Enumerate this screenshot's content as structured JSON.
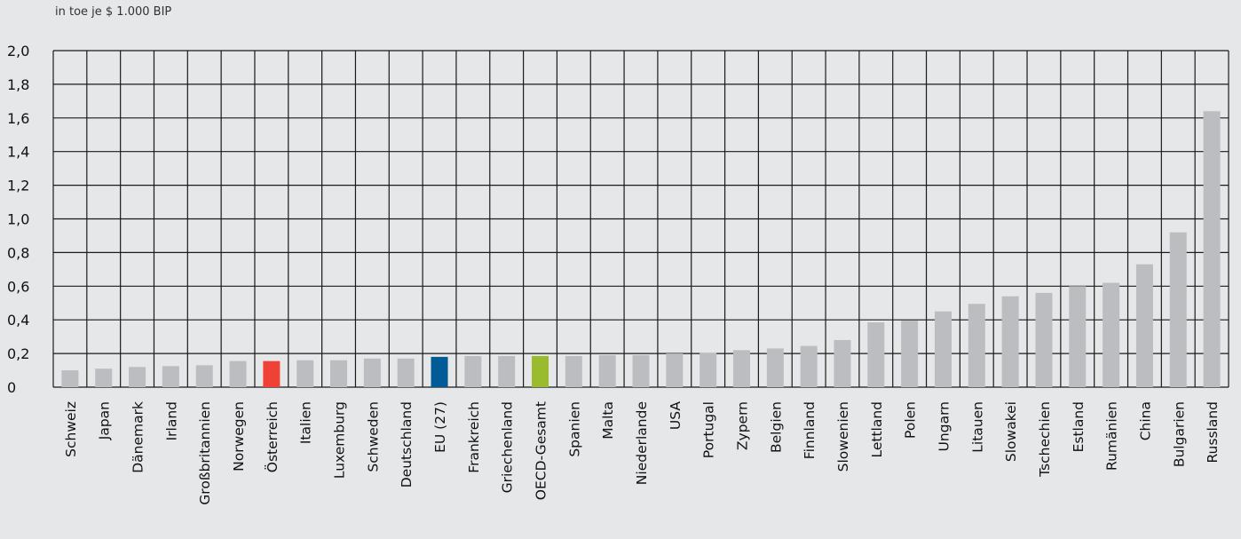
{
  "chart_data": {
    "type": "bar",
    "unit_label": "in toe je $ 1.000 BIP",
    "ylim": [
      0,
      2.0
    ],
    "y_ticks": [
      "0",
      "0,2",
      "0,4",
      "0,6",
      "0,8",
      "1,0",
      "1,2",
      "1,4",
      "1,6",
      "1,8",
      "2,0"
    ],
    "grid": true,
    "categories": [
      "Schweiz",
      "Japan",
      "Dänemark",
      "Irland",
      "Großbritannien",
      "Norwegen",
      "Österreich",
      "Italien",
      "Luxemburg",
      "Schweden",
      "Deutschland",
      "EU (27)",
      "Frankreich",
      "Griechenland",
      "OECD-Gesamt",
      "Spanien",
      "Malta",
      "Niederlande",
      "USA",
      "Portugal",
      "Zypern",
      "Belgien",
      "Finnland",
      "Slowenien",
      "Lettland",
      "Polen",
      "Ungarn",
      "Litauen",
      "Slowakei",
      "Tschechien",
      "Estland",
      "Rumänien",
      "China",
      "Bulgarien",
      "Russland"
    ],
    "values": [
      0.1,
      0.11,
      0.12,
      0.125,
      0.13,
      0.155,
      0.155,
      0.16,
      0.16,
      0.17,
      0.17,
      0.18,
      0.185,
      0.185,
      0.185,
      0.185,
      0.19,
      0.19,
      0.2,
      0.205,
      0.22,
      0.23,
      0.245,
      0.28,
      0.385,
      0.395,
      0.45,
      0.495,
      0.54,
      0.56,
      0.6,
      0.62,
      0.73,
      0.92,
      1.64
    ],
    "colors": {
      "default": "#bcbdc0",
      "Österreich": "#ef4136",
      "EU (27)": "#005b96",
      "OECD-Gesamt": "#9bbb2f"
    }
  }
}
